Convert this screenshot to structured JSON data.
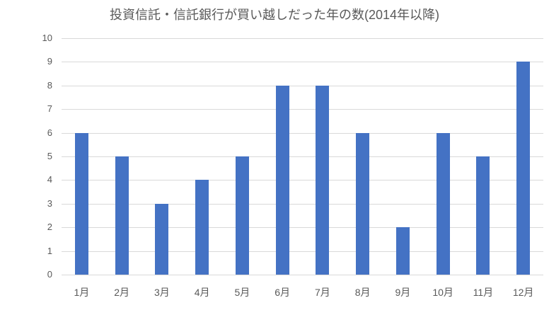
{
  "chart_data": {
    "type": "bar",
    "title": "投資信託・信託銀行が買い越しだった年の数(2014年以降)",
    "categories": [
      "1月",
      "2月",
      "3月",
      "4月",
      "5月",
      "6月",
      "7月",
      "8月",
      "9月",
      "10月",
      "11月",
      "12月"
    ],
    "values": [
      6,
      5,
      3,
      4,
      5,
      8,
      8,
      6,
      2,
      6,
      5,
      9
    ],
    "xlabel": "",
    "ylabel": "",
    "ylim": [
      0,
      10
    ],
    "yticks": [
      0,
      1,
      2,
      3,
      4,
      5,
      6,
      7,
      8,
      9,
      10
    ],
    "grid": true,
    "legend_position": "none",
    "colors": {
      "bar": "#4472C4",
      "gridline": "#D9D9D9",
      "text": "#595959",
      "background": "#FFFFFF"
    }
  }
}
